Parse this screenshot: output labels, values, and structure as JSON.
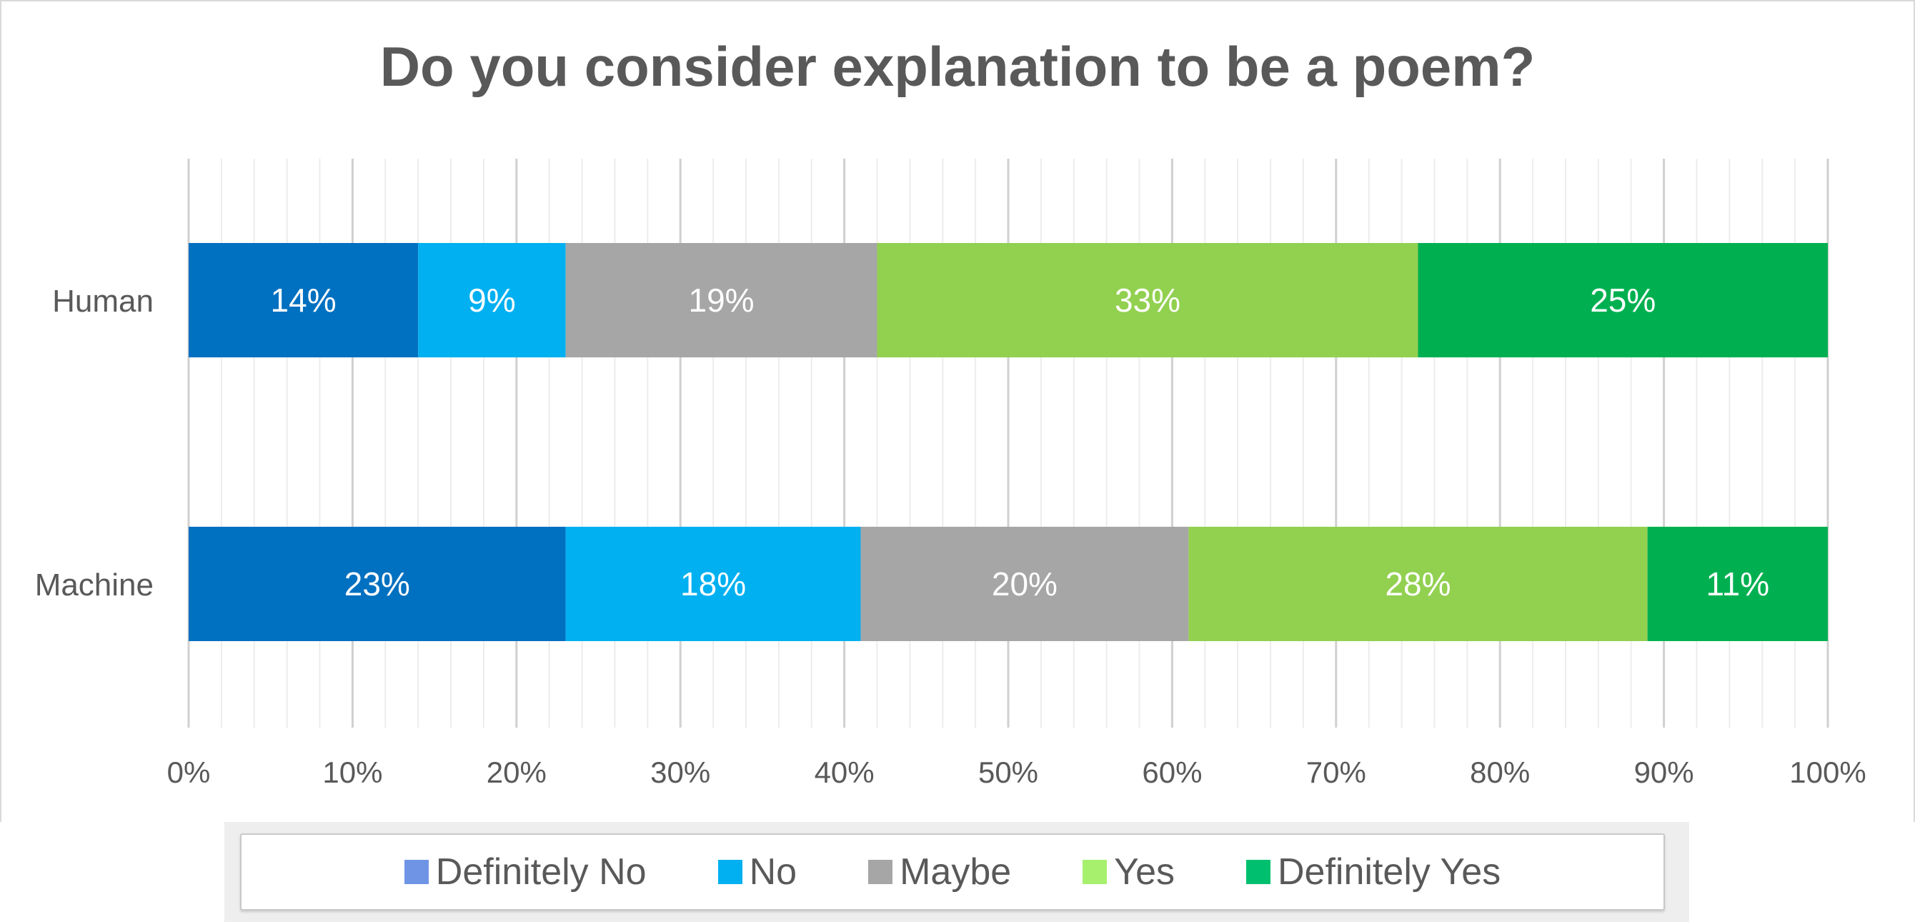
{
  "chart_data": {
    "type": "bar",
    "orientation": "horizontal",
    "stacked": "100%",
    "title": "Do you consider explanation to be a poem?",
    "categories": [
      "Human",
      "Machine"
    ],
    "series": [
      {
        "name": "Definitely No",
        "values": [
          14,
          23
        ],
        "labels": [
          "14%",
          "23%"
        ],
        "color": "#0070c0"
      },
      {
        "name": "No",
        "values": [
          9,
          18
        ],
        "labels": [
          "9%",
          "18%"
        ],
        "color": "#00b0f0"
      },
      {
        "name": "Maybe",
        "values": [
          19,
          20
        ],
        "labels": [
          "19%",
          "20%"
        ],
        "color": "#a6a6a6"
      },
      {
        "name": "Yes",
        "values": [
          33,
          28
        ],
        "labels": [
          "33%",
          "28%"
        ],
        "color": "#92d050"
      },
      {
        "name": "Definitely Yes",
        "values": [
          25,
          11
        ],
        "labels": [
          "25%",
          "11%"
        ],
        "color": "#00b050"
      }
    ],
    "xlim": [
      0,
      100
    ],
    "x_ticks": [
      "0%",
      "10%",
      "20%",
      "30%",
      "40%",
      "50%",
      "60%",
      "70%",
      "80%",
      "90%",
      "100%"
    ],
    "grid": true,
    "legend": {
      "placement": "bottom",
      "items": [
        {
          "name": "Definitely No",
          "color": "#6f94e6"
        },
        {
          "name": "No",
          "color": "#00b0f0"
        },
        {
          "name": "Maybe",
          "color": "#a6a6a6"
        },
        {
          "name": "Yes",
          "color": "#a6f06e"
        },
        {
          "name": "Definitely Yes",
          "color": "#00c070"
        }
      ]
    },
    "label_color": "#ffffff",
    "text_color": "#595959",
    "grid_major_color": "#d0d0d0",
    "grid_minor_color": "#ececec"
  }
}
